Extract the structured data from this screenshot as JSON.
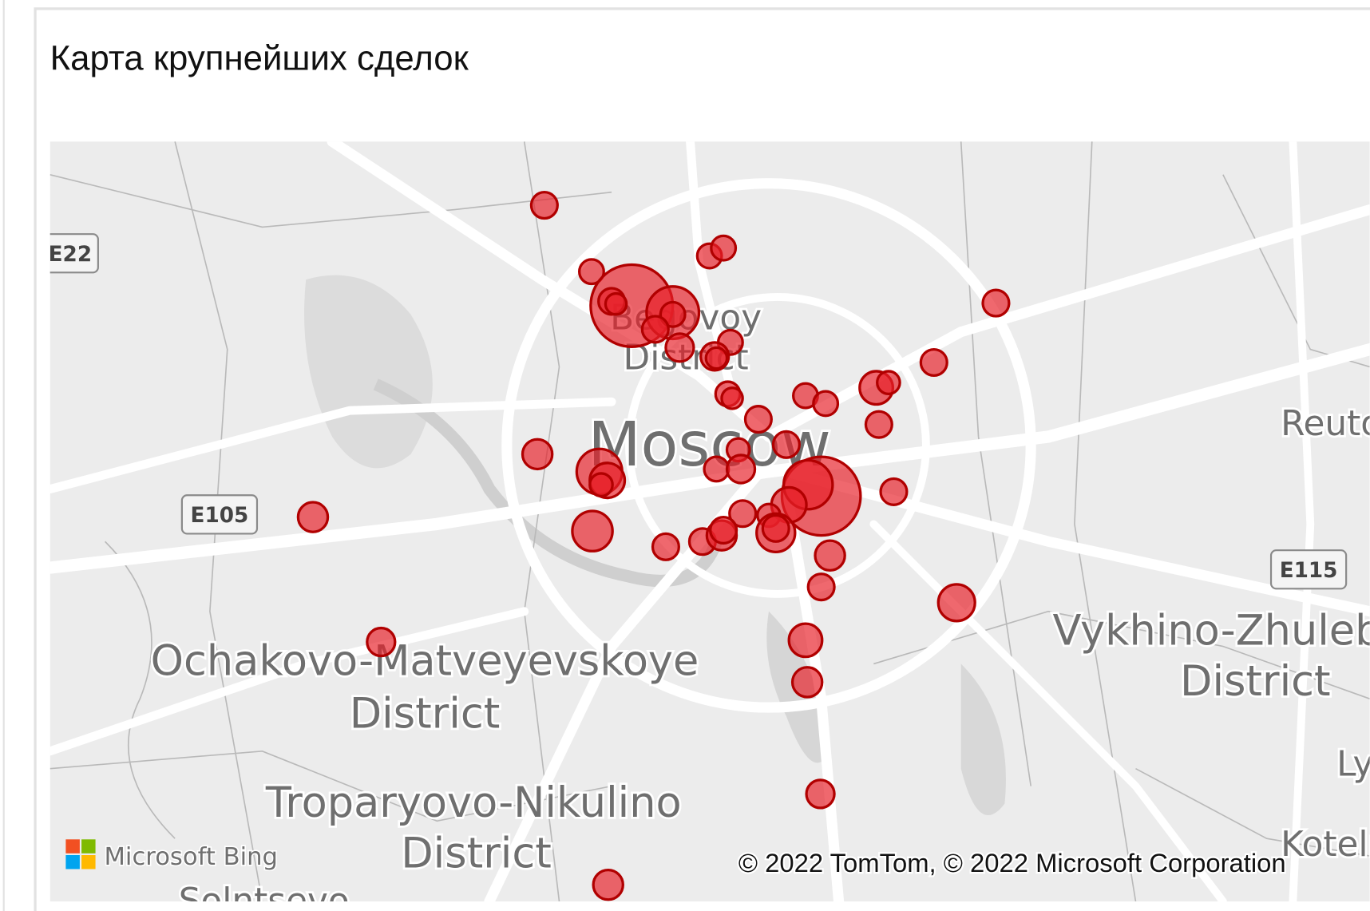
{
  "title": "Карта крупнейших сделок",
  "map": {
    "shields": [
      "E22",
      "E105",
      "E115"
    ],
    "labels": {
      "moscow": "Moscow",
      "begovoy": "Begovoy",
      "begovoy_district": "District",
      "reutov": "Reutov",
      "ochakovo": "Ochakovo-Matveyevskoye",
      "ochakovo_district": "District",
      "vykhino": "Vykhino-Zhulebino",
      "vykhino_district": "District",
      "troparyovo": "Troparyovo-Nikulino",
      "troparyovo_district": "District",
      "kotel": "Kotelniki",
      "ly": "Lyublino",
      "solntsevo": "Solntsevo"
    },
    "logo": "Microsoft Bing",
    "attribution": "© 2022 TomTom, © 2022 Microsoft Corporation"
  }
}
